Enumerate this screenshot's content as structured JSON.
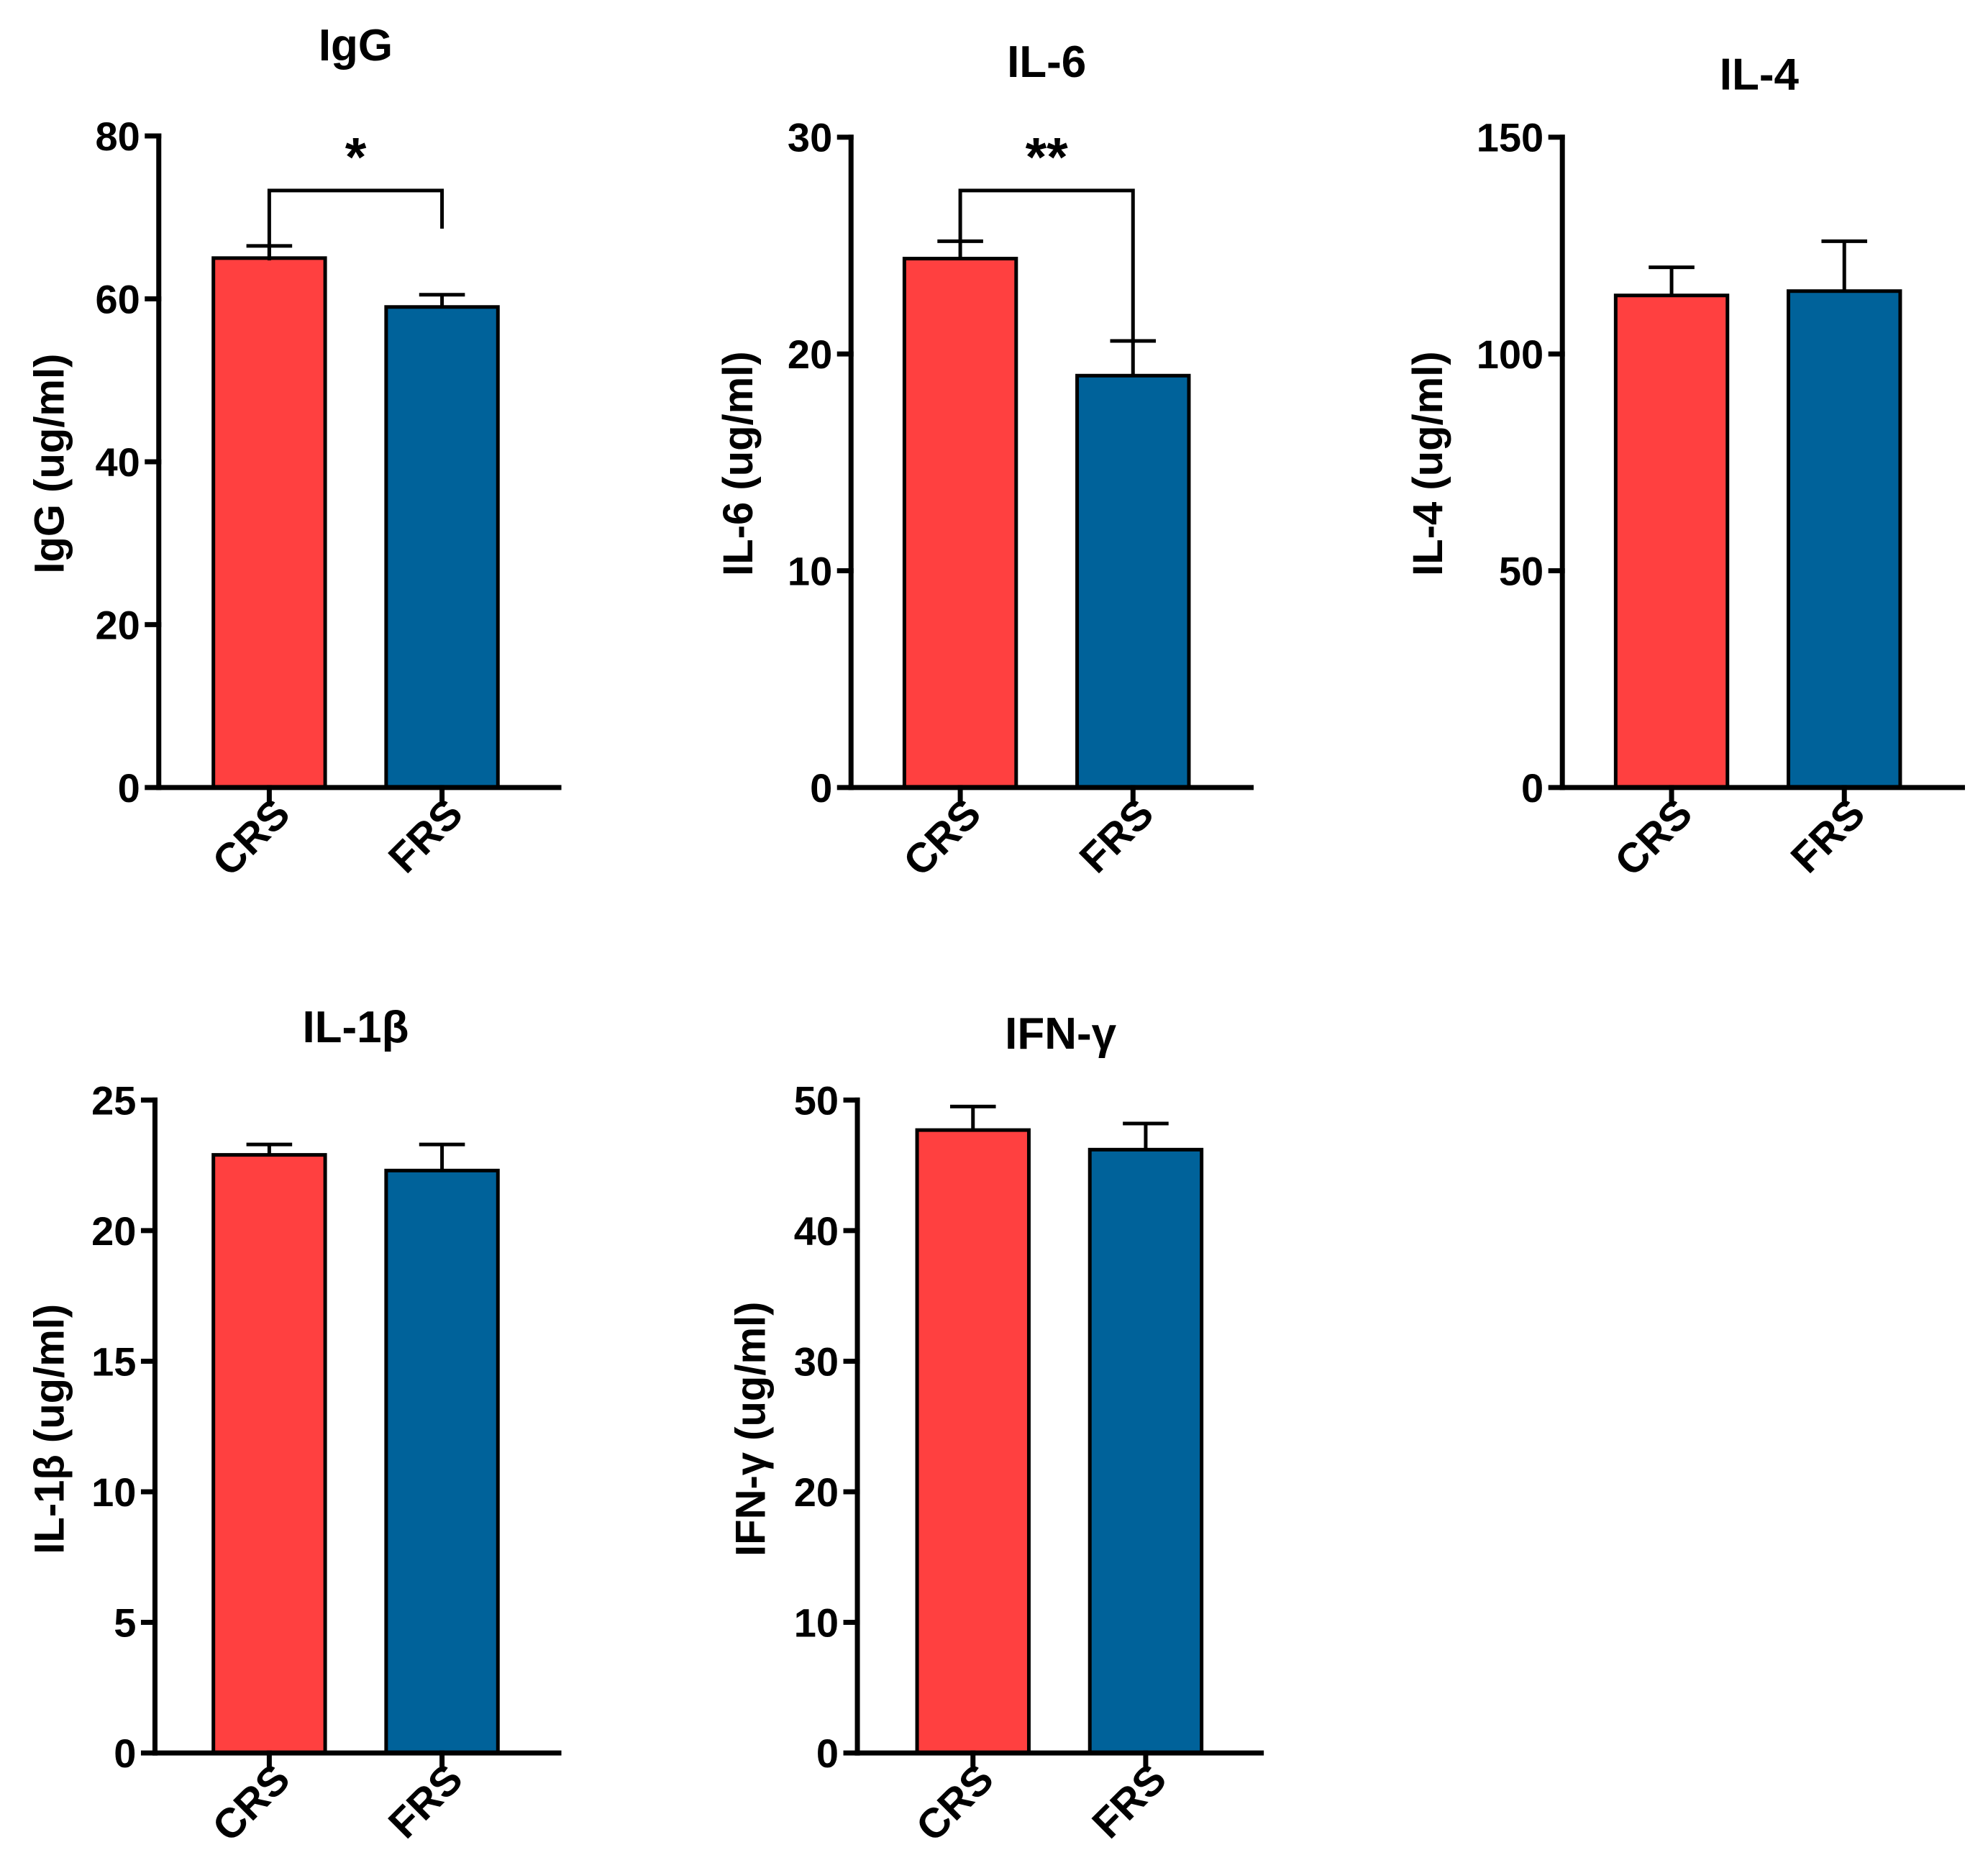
{
  "chart_data": [
    {
      "type": "bar",
      "title": "IgG",
      "ylabel": "IgG (ug/ml)",
      "categories": [
        "CRS",
        "FRS"
      ],
      "values": [
        65,
        59
      ],
      "errors": [
        1.5,
        1.5
      ],
      "ylim": [
        0,
        80
      ],
      "yticks": [
        "0",
        "20",
        "40",
        "60",
        "80"
      ],
      "colors": [
        "#ff4040",
        "#00629a"
      ],
      "significance": "*"
    },
    {
      "type": "bar",
      "title": "IL-6",
      "ylabel": "IL-6 (ug/ml)",
      "categories": [
        "CRS",
        "FRS"
      ],
      "values": [
        24.4,
        19
      ],
      "errors": [
        0.8,
        1.6
      ],
      "ylim": [
        0,
        30
      ],
      "yticks": [
        "0",
        "10",
        "20",
        "30"
      ],
      "colors": [
        "#ff4040",
        "#00629a"
      ],
      "significance": "**"
    },
    {
      "type": "bar",
      "title": "IL-4",
      "ylabel": "IL-4 (ug/ml)",
      "categories": [
        "CRS",
        "FRS"
      ],
      "values": [
        113.5,
        114.5
      ],
      "errors": [
        6.5,
        11.5
      ],
      "ylim": [
        0,
        150
      ],
      "yticks": [
        "0",
        "50",
        "100",
        "150"
      ],
      "colors": [
        "#ff4040",
        "#00629a"
      ],
      "significance": ""
    },
    {
      "type": "bar",
      "title": "IL-1β",
      "ylabel": "IL-1β (ug/ml)",
      "categories": [
        "CRS",
        "FRS"
      ],
      "values": [
        22.9,
        22.3
      ],
      "errors": [
        0.4,
        1.0
      ],
      "ylim": [
        0,
        25
      ],
      "yticks": [
        "0",
        "5",
        "10",
        "15",
        "20",
        "25"
      ],
      "colors": [
        "#ff4040",
        "#00629a"
      ],
      "significance": ""
    },
    {
      "type": "bar",
      "title": "IFN-γ",
      "ylabel": "IFN-γ (ug/ml)",
      "categories": [
        "CRS",
        "FRS"
      ],
      "values": [
        47.7,
        46.2
      ],
      "errors": [
        1.8,
        2.0
      ],
      "ylim": [
        0,
        50
      ],
      "yticks": [
        "0",
        "10",
        "20",
        "30",
        "40",
        "50"
      ],
      "colors": [
        "#ff4040",
        "#00629a"
      ],
      "significance": ""
    }
  ]
}
